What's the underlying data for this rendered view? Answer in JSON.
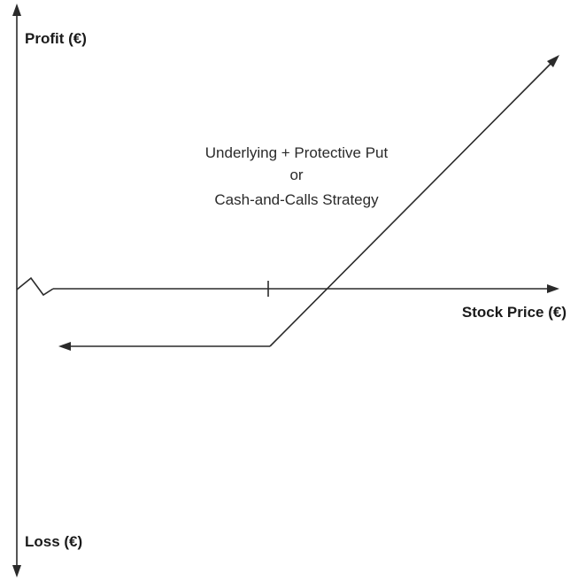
{
  "diagram": {
    "y_axis": {
      "top_label": "Profit (€)",
      "bottom_label": "Loss (€)"
    },
    "x_axis": {
      "label": "Stock Price (€)"
    },
    "annotation": {
      "lines": [
        "Underlying + Protective Put",
        "or",
        "Cash-and-Calls Strategy"
      ]
    },
    "colors": {
      "ink": "#2a2a2a"
    }
  }
}
